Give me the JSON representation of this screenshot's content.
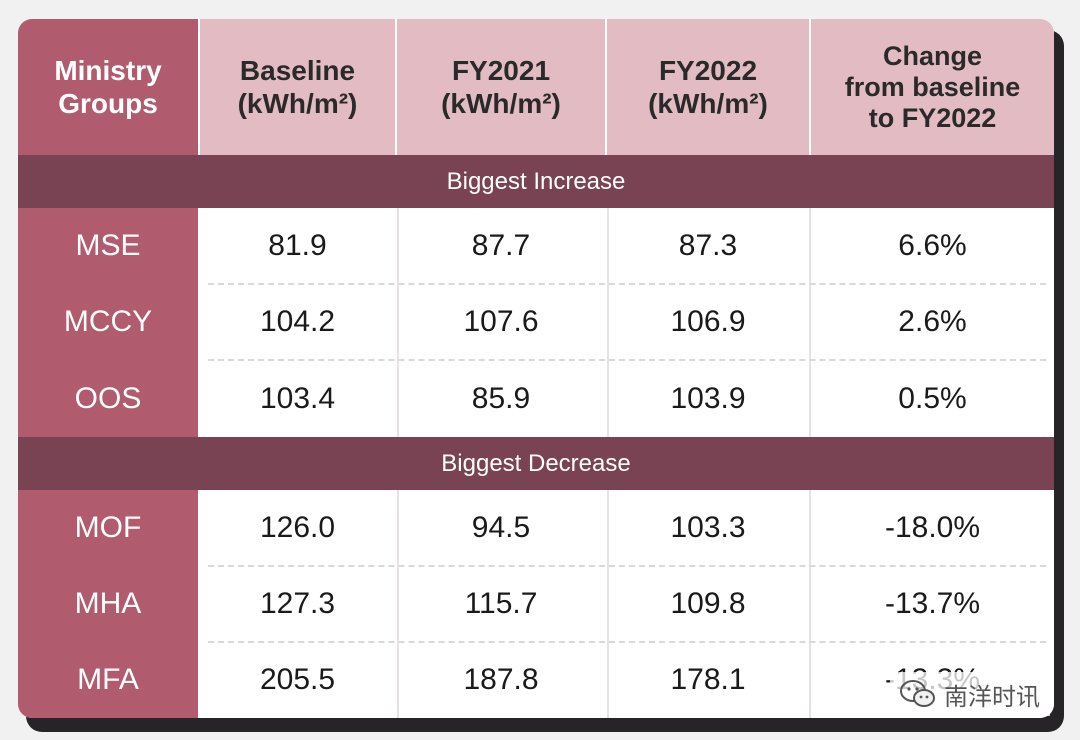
{
  "table": {
    "headers": [
      "Ministry\nGroups",
      "Baseline\n(kWh/m²)",
      "FY2021\n(kWh/m²)",
      "FY2022\n(kWh/m²)",
      "Change\nfrom baseline\nto FY2022"
    ],
    "sections": [
      {
        "label": "Biggest Increase",
        "rows": [
          [
            "MSE",
            "81.9",
            "87.7",
            "87.3",
            "6.6%"
          ],
          [
            "MCCY",
            "104.2",
            "107.6",
            "106.9",
            "2.6%"
          ],
          [
            "OOS",
            "103.4",
            "85.9",
            "103.9",
            "0.5%"
          ]
        ]
      },
      {
        "label": "Biggest Decrease",
        "rows": [
          [
            "MOF",
            "126.0",
            "94.5",
            "103.3",
            "-18.0%"
          ],
          [
            "MHA",
            "127.3",
            "115.7",
            "109.8",
            "-13.7%"
          ],
          [
            "MFA",
            "205.5",
            "187.8",
            "178.1",
            "-13.3%"
          ]
        ]
      }
    ]
  },
  "watermark": {
    "text": "南洋时讯",
    "icon": "wechat-icon"
  },
  "colors": {
    "label_column": "#b15b6e",
    "header_cells": "#e3bcc3",
    "section_band": "#7a4353",
    "background": "#f1f1f1"
  }
}
